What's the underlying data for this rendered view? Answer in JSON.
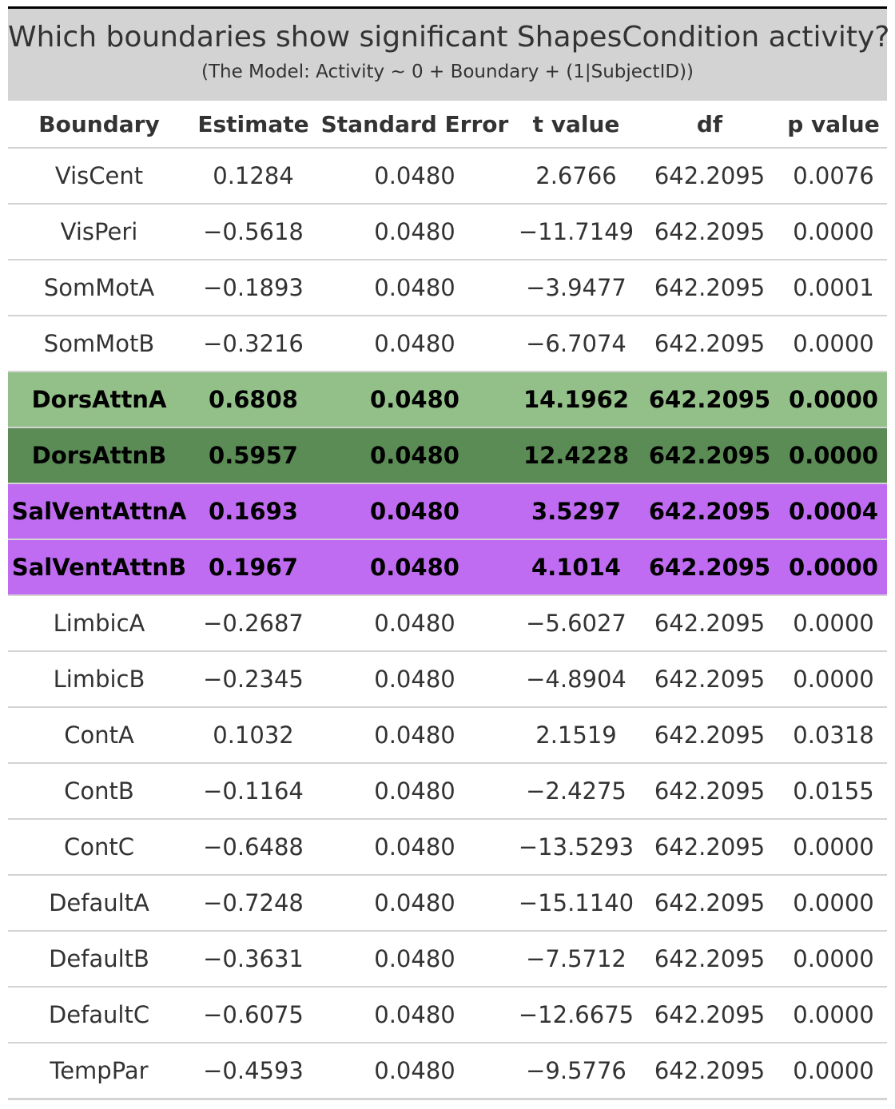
{
  "title": "Which boundaries show significant ShapesCondition activity?",
  "subtitle": "(The Model: Activity ~ 0 + Boundary + (1|SubjectID))",
  "colors": {
    "title_bg": "#d3d3d3",
    "dorsattn_a": "#93c089",
    "dorsattn_b": "#5b8c56",
    "salventattn": "#c06cf2"
  },
  "columns": [
    "Boundary",
    "Estimate",
    "Standard Error",
    "t value",
    "df",
    "p value"
  ],
  "rows": [
    {
      "boundary": "VisCent",
      "estimate": "0.1284",
      "se": "0.0480",
      "t": "2.6766",
      "df": "642.2095",
      "p": "0.0076",
      "highlight": ""
    },
    {
      "boundary": "VisPeri",
      "estimate": "−0.5618",
      "se": "0.0480",
      "t": "−11.7149",
      "df": "642.2095",
      "p": "0.0000",
      "highlight": ""
    },
    {
      "boundary": "SomMotA",
      "estimate": "−0.1893",
      "se": "0.0480",
      "t": "−3.9477",
      "df": "642.2095",
      "p": "0.0001",
      "highlight": ""
    },
    {
      "boundary": "SomMotB",
      "estimate": "−0.3216",
      "se": "0.0480",
      "t": "−6.7074",
      "df": "642.2095",
      "p": "0.0000",
      "highlight": ""
    },
    {
      "boundary": "DorsAttnA",
      "estimate": "0.6808",
      "se": "0.0480",
      "t": "14.1962",
      "df": "642.2095",
      "p": "0.0000",
      "highlight": "#93c089"
    },
    {
      "boundary": "DorsAttnB",
      "estimate": "0.5957",
      "se": "0.0480",
      "t": "12.4228",
      "df": "642.2095",
      "p": "0.0000",
      "highlight": "#5b8c56"
    },
    {
      "boundary": "SalVentAttnA",
      "estimate": "0.1693",
      "se": "0.0480",
      "t": "3.5297",
      "df": "642.2095",
      "p": "0.0004",
      "highlight": "#c06cf2"
    },
    {
      "boundary": "SalVentAttnB",
      "estimate": "0.1967",
      "se": "0.0480",
      "t": "4.1014",
      "df": "642.2095",
      "p": "0.0000",
      "highlight": "#c06cf2"
    },
    {
      "boundary": "LimbicA",
      "estimate": "−0.2687",
      "se": "0.0480",
      "t": "−5.6027",
      "df": "642.2095",
      "p": "0.0000",
      "highlight": ""
    },
    {
      "boundary": "LimbicB",
      "estimate": "−0.2345",
      "se": "0.0480",
      "t": "−4.8904",
      "df": "642.2095",
      "p": "0.0000",
      "highlight": ""
    },
    {
      "boundary": "ContA",
      "estimate": "0.1032",
      "se": "0.0480",
      "t": "2.1519",
      "df": "642.2095",
      "p": "0.0318",
      "highlight": ""
    },
    {
      "boundary": "ContB",
      "estimate": "−0.1164",
      "se": "0.0480",
      "t": "−2.4275",
      "df": "642.2095",
      "p": "0.0155",
      "highlight": ""
    },
    {
      "boundary": "ContC",
      "estimate": "−0.6488",
      "se": "0.0480",
      "t": "−13.5293",
      "df": "642.2095",
      "p": "0.0000",
      "highlight": ""
    },
    {
      "boundary": "DefaultA",
      "estimate": "−0.7248",
      "se": "0.0480",
      "t": "−15.1140",
      "df": "642.2095",
      "p": "0.0000",
      "highlight": ""
    },
    {
      "boundary": "DefaultB",
      "estimate": "−0.3631",
      "se": "0.0480",
      "t": "−7.5712",
      "df": "642.2095",
      "p": "0.0000",
      "highlight": ""
    },
    {
      "boundary": "DefaultC",
      "estimate": "−0.6075",
      "se": "0.0480",
      "t": "−12.6675",
      "df": "642.2095",
      "p": "0.0000",
      "highlight": ""
    },
    {
      "boundary": "TempPar",
      "estimate": "−0.4593",
      "se": "0.0480",
      "t": "−9.5776",
      "df": "642.2095",
      "p": "0.0000",
      "highlight": ""
    }
  ]
}
